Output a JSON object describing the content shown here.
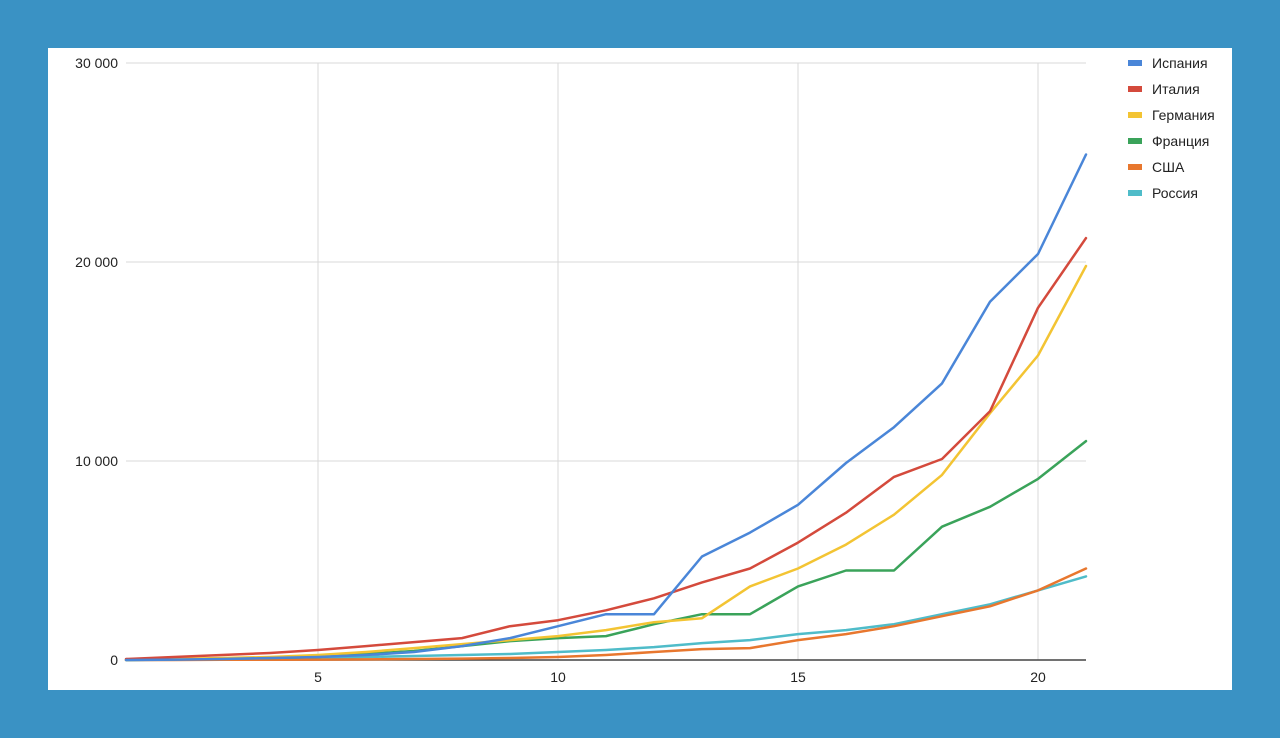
{
  "chart_data": {
    "type": "line",
    "title": "",
    "xlabel": "",
    "ylabel": "",
    "x": [
      1,
      2,
      3,
      4,
      5,
      6,
      7,
      8,
      9,
      10,
      11,
      12,
      13,
      14,
      15,
      16,
      17,
      18,
      19,
      20,
      21
    ],
    "xlim": [
      1,
      21
    ],
    "ylim": [
      0,
      30000
    ],
    "x_ticks": [
      5,
      10,
      15,
      20
    ],
    "x_tick_labels": [
      "5",
      "10",
      "15",
      "20"
    ],
    "y_ticks": [
      0,
      10000,
      20000,
      30000
    ],
    "y_tick_labels": [
      "0",
      "10 000",
      "20 000",
      "30 000"
    ],
    "grid": true,
    "legend_position": "right",
    "series": [
      {
        "name": "Испания",
        "color": "#4a86d8",
        "values": [
          0,
          20,
          50,
          100,
          150,
          250,
          400,
          700,
          1100,
          1700,
          2300,
          2300,
          5200,
          6400,
          7800,
          9900,
          11700,
          13900,
          18000,
          20400,
          25400
        ]
      },
      {
        "name": "Италия",
        "color": "#d44a3c",
        "values": [
          50,
          150,
          250,
          350,
          500,
          700,
          900,
          1100,
          1700,
          2000,
          2500,
          3100,
          3900,
          4600,
          5900,
          7400,
          9200,
          10100,
          12500,
          17700,
          21200
        ]
      },
      {
        "name": "Германия",
        "color": "#f3c433",
        "values": [
          10,
          50,
          100,
          150,
          250,
          400,
          600,
          800,
          1000,
          1200,
          1500,
          1900,
          2100,
          3700,
          4600,
          5800,
          7300,
          9300,
          12400,
          15300,
          19800
        ]
      },
      {
        "name": "Франция",
        "color": "#3aa35a",
        "values": [
          0,
          30,
          60,
          100,
          150,
          300,
          450,
          700,
          950,
          1100,
          1200,
          1800,
          2300,
          2300,
          3700,
          4500,
          4500,
          6700,
          7700,
          9100,
          11000
        ]
      },
      {
        "name": "США",
        "color": "#e8772e",
        "values": [
          0,
          0,
          10,
          10,
          20,
          30,
          50,
          70,
          100,
          150,
          250,
          400,
          550,
          600,
          1000,
          1300,
          1700,
          2200,
          2700,
          3500,
          4600
        ]
      },
      {
        "name": "Россия",
        "color": "#4fbcc9",
        "values": [
          0,
          10,
          30,
          50,
          100,
          150,
          200,
          250,
          300,
          400,
          500,
          650,
          850,
          1000,
          1300,
          1500,
          1800,
          2300,
          2800,
          3500,
          4200
        ]
      }
    ]
  }
}
